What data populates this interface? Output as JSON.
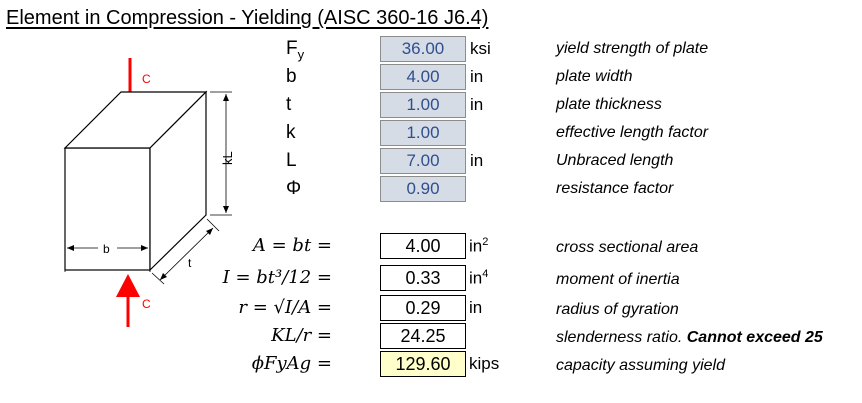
{
  "title": "Element in Compression - Yielding (AISC 360-16 J6.4)",
  "inputs": [
    {
      "symbol": "F",
      "sub": "y",
      "value": "36.00",
      "unit": "ksi",
      "desc": "yield strength of plate"
    },
    {
      "symbol": "b",
      "sub": "",
      "value": "4.00",
      "unit": "in",
      "desc": "plate width"
    },
    {
      "symbol": "t",
      "sub": "",
      "value": "1.00",
      "unit": "in",
      "desc": "plate thickness"
    },
    {
      "symbol": "k",
      "sub": "",
      "value": "1.00",
      "unit": "",
      "desc": "effective length factor"
    },
    {
      "symbol": "L",
      "sub": "",
      "value": "7.00",
      "unit": "in",
      "desc": "Unbraced length"
    },
    {
      "symbol": "Φ",
      "sub": "",
      "value": "0.90",
      "unit": "",
      "desc": "resistance factor"
    }
  ],
  "outputs": [
    {
      "eq": "A = bt =",
      "value": "4.00",
      "unit": "in",
      "unit_sup": "2",
      "desc": "cross sectional area",
      "warn": ""
    },
    {
      "eq": "I = bt³/12 =",
      "value": "0.33",
      "unit": "in",
      "unit_sup": "4",
      "desc": "moment of inertia",
      "warn": ""
    },
    {
      "eq": "r = √I/A =",
      "value": "0.29",
      "unit": "in",
      "unit_sup": "",
      "desc": "radius of gyration",
      "warn": ""
    },
    {
      "eq": "KL/r =",
      "value": "24.25",
      "unit": "",
      "unit_sup": "",
      "desc": "slenderness ratio.",
      "warn": "Cannot exceed 25"
    },
    {
      "eq": "ϕFyAg =",
      "value": "129.60",
      "unit": "kips",
      "unit_sup": "",
      "desc": "capacity assuming yield",
      "warn": ""
    }
  ],
  "diagram": {
    "load_top": "C",
    "load_bottom": "C",
    "dim_width": "b",
    "dim_thickness": "t",
    "dim_length": "kL",
    "arrow_color": "#ff0000"
  }
}
